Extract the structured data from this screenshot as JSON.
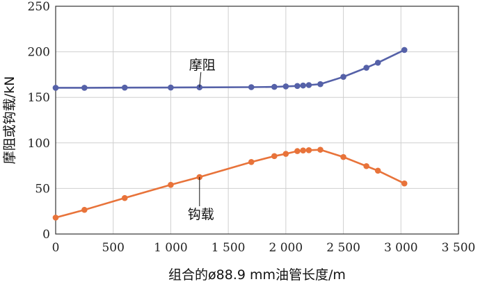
{
  "chart_data": {
    "type": "line",
    "title": "",
    "xlabel": "组合的ø88.9 mm油管长度/m",
    "ylabel": "摩阻或钩载/kN",
    "xlim": [
      0,
      3500
    ],
    "ylim": [
      0,
      250
    ],
    "x_ticks": [
      0,
      500,
      1000,
      1500,
      2000,
      2500,
      3000,
      3500
    ],
    "x_tick_labels": [
      "0",
      "500",
      "1 000",
      "1 500",
      "2 000",
      "2 500",
      "3 000",
      "3 500"
    ],
    "y_ticks": [
      0,
      50,
      100,
      150,
      200,
      250
    ],
    "y_tick_labels": [
      "0",
      "50",
      "100",
      "150",
      "200",
      "250"
    ],
    "grid": true,
    "series": [
      {
        "name": "摩阻",
        "color": "#5561a8",
        "x": [
          0,
          250,
          600,
          1000,
          1250,
          1700,
          1900,
          2000,
          2100,
          2150,
          2200,
          2300,
          2500,
          2700,
          2800,
          3030
        ],
        "values": [
          160.5,
          160.5,
          160.7,
          160.8,
          161,
          161.2,
          161.5,
          162,
          162.5,
          163,
          163.5,
          164.5,
          172.5,
          182.5,
          188,
          202
        ]
      },
      {
        "name": "钩载",
        "color": "#e8733a",
        "x": [
          0,
          250,
          600,
          1000,
          1250,
          1700,
          1900,
          2000,
          2100,
          2150,
          2200,
          2300,
          2500,
          2700,
          2800,
          3030
        ],
        "values": [
          18,
          26.5,
          39.5,
          54,
          62.5,
          79,
          85.5,
          88,
          91,
          91.7,
          92,
          92.5,
          84.5,
          74.5,
          69.5,
          55.5
        ]
      }
    ],
    "annotations": [
      {
        "text": "摩阻",
        "series": "摩阻",
        "point_index": 4
      },
      {
        "text": "钩载",
        "series": "钩载",
        "point_index": 4
      }
    ]
  }
}
